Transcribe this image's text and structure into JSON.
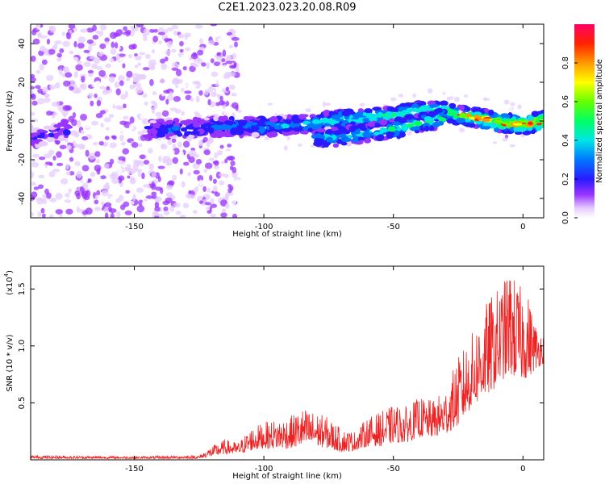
{
  "title": "C2E1.2023.023.20.08.R09",
  "chart_data": [
    {
      "type": "heatmap",
      "xlabel": "Height of straight line (km)",
      "ylabel": "Frequency (Hz)",
      "xlim": [
        -190,
        8
      ],
      "ylim": [
        -50,
        50
      ],
      "xticks": [
        -150,
        -100,
        -50,
        0
      ],
      "xtick_labels": [
        "-150",
        "-100",
        "-50",
        "0"
      ],
      "yticks": [
        -40,
        -20,
        0,
        20,
        40
      ],
      "ytick_labels": [
        "-40",
        "-20",
        "0",
        "20",
        "40"
      ],
      "colorbar": {
        "label": "Normalized spectral amplitude",
        "range": [
          0,
          1
        ],
        "ticks": [
          0.0,
          0.2,
          0.4,
          0.6,
          0.8
        ],
        "tick_labels": [
          "0.0",
          "0.2",
          "0.4",
          "0.6",
          "0.8"
        ]
      },
      "ridge": [
        {
          "x": -188,
          "y": -9
        },
        {
          "x": -180,
          "y": -6
        },
        {
          "x": -175,
          "y": -3
        },
        {
          "x": -160,
          "y": -4
        },
        {
          "x": -145,
          "y": -4
        },
        {
          "x": -130,
          "y": -4
        },
        {
          "x": -120,
          "y": -3
        },
        {
          "x": -110,
          "y": -3
        },
        {
          "x": -100,
          "y": -3
        },
        {
          "x": -90,
          "y": -2
        },
        {
          "x": -80,
          "y": -1
        },
        {
          "x": -70,
          "y": 1
        },
        {
          "x": -60,
          "y": 2
        },
        {
          "x": -50,
          "y": 3
        },
        {
          "x": -40,
          "y": 5
        },
        {
          "x": -30,
          "y": 5
        },
        {
          "x": -25,
          "y": 3
        },
        {
          "x": -15,
          "y": 1
        },
        {
          "x": -8,
          "y": -1
        },
        {
          "x": 0,
          "y": -2
        },
        {
          "x": 8,
          "y": 0
        }
      ],
      "lower_ridge": [
        {
          "x": -80,
          "y": -9
        },
        {
          "x": -70,
          "y": -8
        },
        {
          "x": -60,
          "y": -6
        },
        {
          "x": -50,
          "y": -4
        },
        {
          "x": -40,
          "y": -1
        },
        {
          "x": -30,
          "y": 2
        }
      ]
    },
    {
      "type": "line",
      "xlabel": "Height of straight line (km)",
      "ylabel": "SNR (10 * v/v)",
      "y_multiplier_label": "(x10",
      "y_multiplier_exponent": "4",
      "xlim": [
        -190,
        8
      ],
      "ylim": [
        0,
        1.7
      ],
      "xticks": [
        -150,
        -100,
        -50,
        0
      ],
      "xtick_labels": [
        "-150",
        "-100",
        "-50",
        "0"
      ],
      "yticks": [
        0.5,
        1.0,
        1.5
      ],
      "ytick_labels": [
        "0.5",
        "1.0",
        "1.5"
      ],
      "series": [
        {
          "color": "#ee2222",
          "envelope": [
            {
              "x": -190,
              "base": 0.01,
              "peak": 0.04
            },
            {
              "x": -150,
              "base": 0.01,
              "peak": 0.03
            },
            {
              "x": -125,
              "base": 0.01,
              "peak": 0.04
            },
            {
              "x": -120,
              "base": 0.03,
              "peak": 0.12
            },
            {
              "x": -115,
              "base": 0.05,
              "peak": 0.18
            },
            {
              "x": -110,
              "base": 0.05,
              "peak": 0.15
            },
            {
              "x": -105,
              "base": 0.08,
              "peak": 0.28
            },
            {
              "x": -100,
              "base": 0.1,
              "peak": 0.33
            },
            {
              "x": -90,
              "base": 0.1,
              "peak": 0.38
            },
            {
              "x": -85,
              "base": 0.12,
              "peak": 0.45
            },
            {
              "x": -80,
              "base": 0.12,
              "peak": 0.42
            },
            {
              "x": -75,
              "base": 0.1,
              "peak": 0.37
            },
            {
              "x": -70,
              "base": 0.07,
              "peak": 0.27
            },
            {
              "x": -65,
              "base": 0.08,
              "peak": 0.25
            },
            {
              "x": -60,
              "base": 0.12,
              "peak": 0.37
            },
            {
              "x": -55,
              "base": 0.12,
              "peak": 0.42
            },
            {
              "x": -50,
              "base": 0.15,
              "peak": 0.48
            },
            {
              "x": -45,
              "base": 0.15,
              "peak": 0.47
            },
            {
              "x": -40,
              "base": 0.2,
              "peak": 0.55
            },
            {
              "x": -35,
              "base": 0.2,
              "peak": 0.52
            },
            {
              "x": -30,
              "base": 0.22,
              "peak": 0.62
            },
            {
              "x": -25,
              "base": 0.3,
              "peak": 0.9
            },
            {
              "x": -20,
              "base": 0.45,
              "peak": 1.1
            },
            {
              "x": -15,
              "base": 0.55,
              "peak": 1.35
            },
            {
              "x": -12,
              "base": 0.6,
              "peak": 1.45
            },
            {
              "x": -8,
              "base": 0.7,
              "peak": 1.55
            },
            {
              "x": -5,
              "base": 0.75,
              "peak": 1.68
            },
            {
              "x": -2,
              "base": 0.7,
              "peak": 1.55
            },
            {
              "x": 2,
              "base": 0.72,
              "peak": 1.45
            },
            {
              "x": 5,
              "base": 0.8,
              "peak": 1.2
            },
            {
              "x": 8,
              "base": 0.85,
              "peak": 1.1
            }
          ]
        }
      ]
    }
  ]
}
